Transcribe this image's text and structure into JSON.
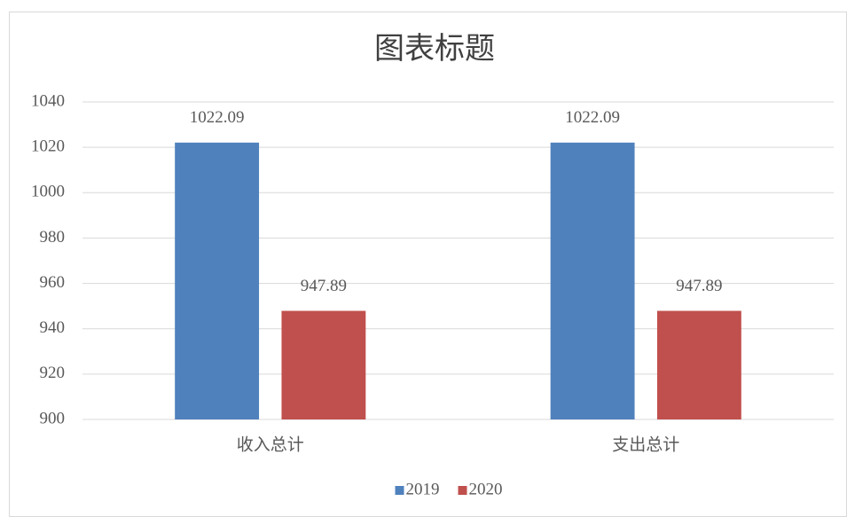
{
  "chart_data": {
    "type": "bar",
    "title": "图表标题",
    "categories": [
      "收入总计",
      "支出总计"
    ],
    "series": [
      {
        "name": "2019",
        "color": "#4f81bd",
        "values": [
          1022.09,
          1022.09
        ]
      },
      {
        "name": "2020",
        "color": "#c0504d",
        "values": [
          947.89,
          947.89
        ]
      }
    ],
    "ylim": [
      900,
      1040
    ],
    "yticks": [
      900,
      920,
      940,
      960,
      980,
      1000,
      1020,
      1040
    ],
    "grid": true,
    "legend": "bottom"
  }
}
